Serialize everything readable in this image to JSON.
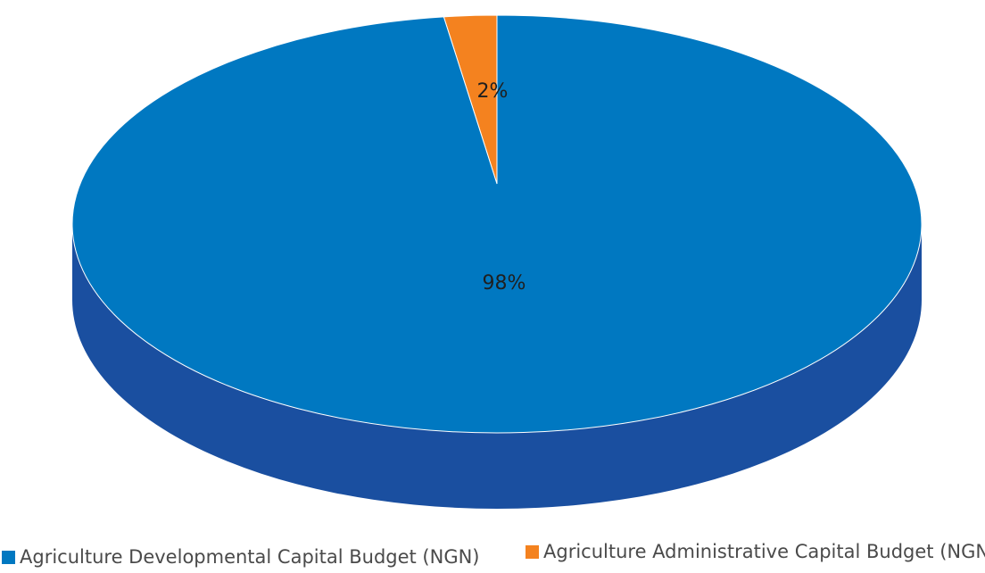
{
  "chart_data": {
    "type": "pie",
    "series": [
      {
        "name": "Agriculture Developmental Capital Budget (NGN)",
        "value": 98,
        "label": "98%",
        "color": "#0078c1",
        "side_color": "#1a4fa0"
      },
      {
        "name": "Agriculture Administrative Capital Budget (NGN)",
        "value": 2,
        "label": "2%",
        "color": "#f4821f",
        "side_color": "#c9650f"
      }
    ],
    "legend_position": "bottom",
    "three_d": true
  }
}
